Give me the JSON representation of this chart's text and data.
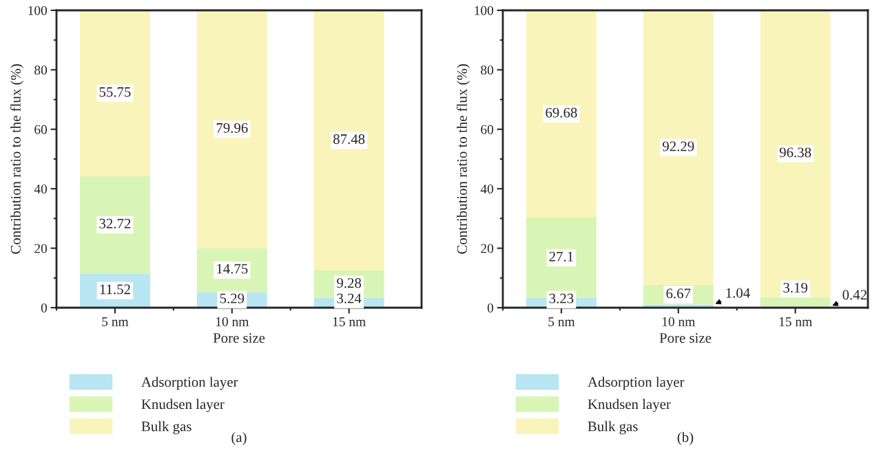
{
  "chart_data": [
    {
      "type": "bar",
      "stacked": true,
      "categories": [
        "5 nm",
        "10 nm",
        "15 nm"
      ],
      "xlabel": "Pore size",
      "ylabel": "Contribution ratio to the flux (%)",
      "ylim": [
        0,
        100
      ],
      "yticks": [
        0,
        20,
        40,
        60,
        80,
        100
      ],
      "legend": "bottom",
      "data_labels": true,
      "annotations": [
        "(a)"
      ],
      "series": [
        {
          "name": "Adsorption layer",
          "color": "#b8e6f2",
          "values": [
            11.52,
            5.29,
            3.24
          ]
        },
        {
          "name": "Knudsen layer",
          "color": "#d9f5b5",
          "values": [
            32.72,
            14.75,
            9.28
          ]
        },
        {
          "name": "Bulk gas",
          "color": "#f9f4ba",
          "values": [
            55.75,
            79.96,
            87.48
          ]
        }
      ]
    },
    {
      "type": "bar",
      "stacked": true,
      "categories": [
        "5 nm",
        "10 nm",
        "15 nm"
      ],
      "xlabel": "Pore size",
      "ylabel": "Contribution ratio to the flux (%)",
      "ylim": [
        0,
        100
      ],
      "yticks": [
        0,
        20,
        40,
        60,
        80,
        100
      ],
      "legend": "bottom",
      "data_labels": true,
      "annotations": [
        "(b)"
      ],
      "series": [
        {
          "name": "Adsorption layer",
          "color": "#b8e6f2",
          "values": [
            3.23,
            1.04,
            0.42
          ]
        },
        {
          "name": "Knudsen layer",
          "color": "#d9f5b5",
          "values": [
            27.1,
            6.67,
            3.19
          ]
        },
        {
          "name": "Bulk gas",
          "color": "#f9f4ba",
          "values": [
            69.68,
            92.29,
            96.38
          ]
        }
      ]
    }
  ]
}
